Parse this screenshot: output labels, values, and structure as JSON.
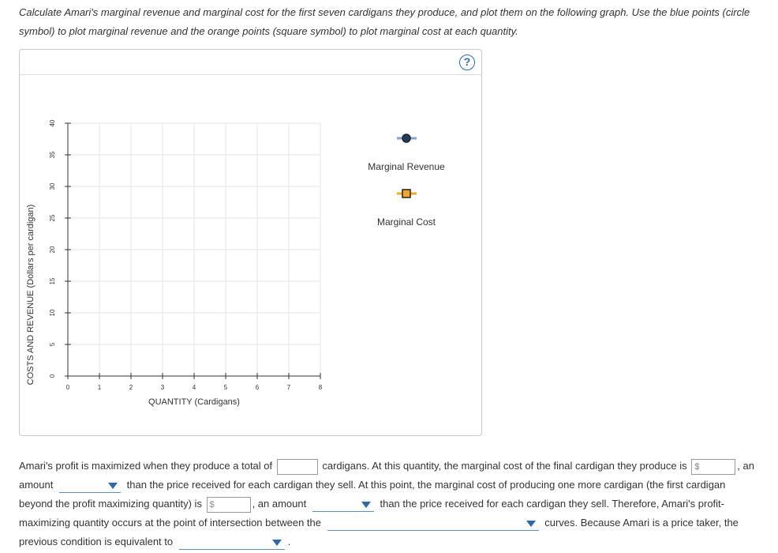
{
  "instructions": "Calculate Amari's marginal revenue and marginal cost for the first seven cardigans they produce, and plot them on the following graph. Use the blue points (circle symbol) to plot marginal revenue and the orange points (square symbol) to plot marginal cost at each quantity.",
  "graph": {
    "help_symbol": "?",
    "legend": {
      "marginal_revenue": "Marginal Revenue",
      "marginal_cost": "Marginal Cost"
    },
    "colors": {
      "mr_line": "#7fa3d6",
      "mr_marker_fill": "#1f3d5e",
      "mc_line": "#f5a623",
      "mc_marker_fill": "#f5a623",
      "grid": "#e6e6e6",
      "axis": "#333333"
    }
  },
  "chart_data": {
    "type": "scatter",
    "xlabel": "QUANTITY (Cardigans)",
    "ylabel": "COSTS AND REVENUE (Dollars per cardigan)",
    "xlim": [
      0,
      8
    ],
    "ylim": [
      0,
      40
    ],
    "x_ticks": [
      "0",
      "1",
      "2",
      "3",
      "4",
      "5",
      "6",
      "7",
      "8"
    ],
    "y_ticks": [
      "0",
      "5",
      "10",
      "15",
      "20",
      "25",
      "30",
      "35",
      "40"
    ],
    "grid": true,
    "legend_position": "right",
    "series": [
      {
        "name": "Marginal Revenue",
        "marker": "circle",
        "values": []
      },
      {
        "name": "Marginal Cost",
        "marker": "square",
        "values": []
      }
    ]
  },
  "question": {
    "p1": "Amari's profit is maximized when they produce a total of",
    "p2": "cardigans. At this quantity, the marginal cost of the final cardigan they produce is",
    "dollar_placeholder": "$",
    "p3": ", an amount",
    "p4": "than the price received for each cardigan they sell. At this point, the marginal cost of producing one more cardigan (the first cardigan beyond the profit maximizing quantity) is",
    "p5": ", an amount",
    "p6": "than the price received for each cardigan they sell. Therefore, Amari's profit-maximizing quantity occurs at the point of intersection between the",
    "p7": "curves. Because Amari is a price taker, the previous condition is equivalent to",
    "p8": "."
  }
}
